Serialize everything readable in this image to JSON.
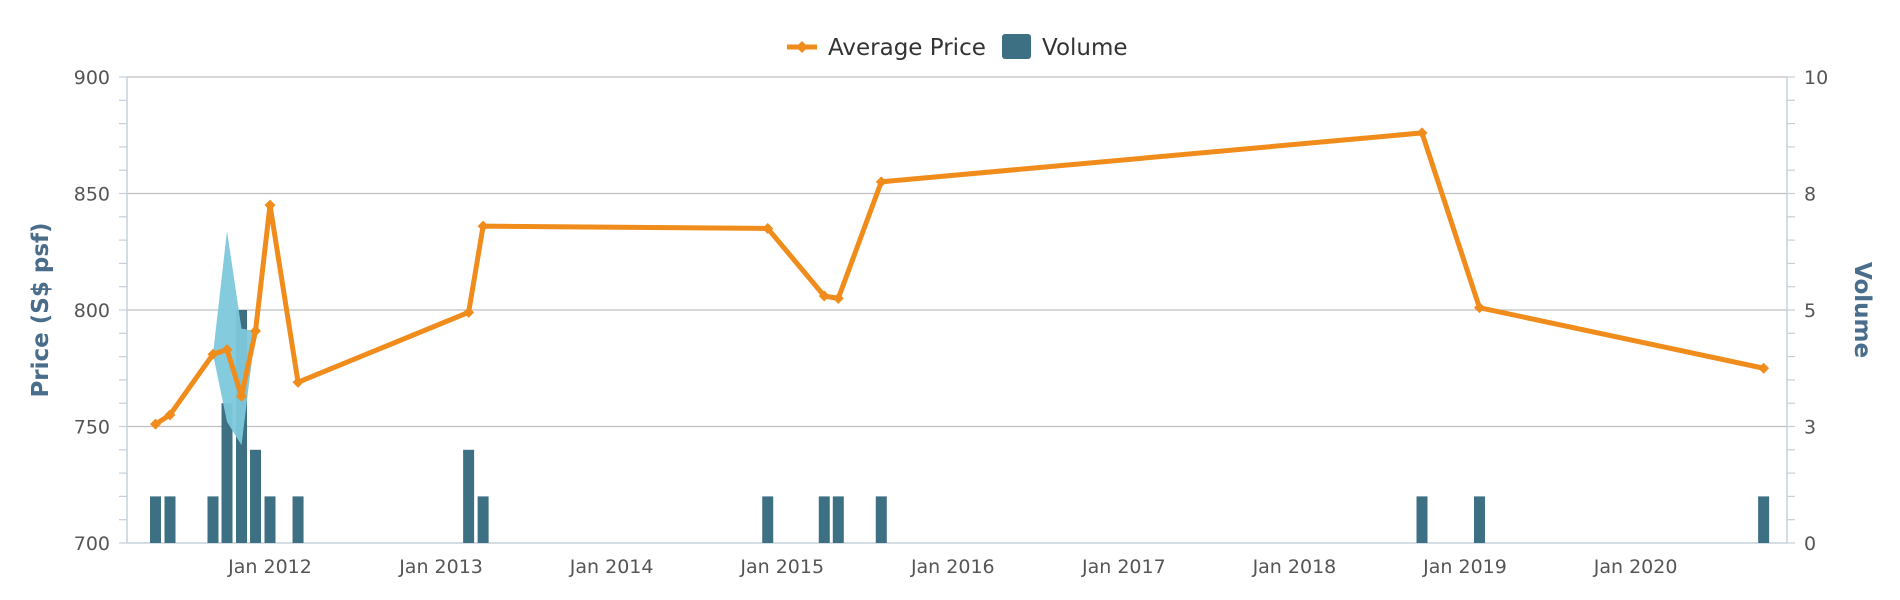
{
  "chart_data": {
    "type": "line+bar",
    "title": "",
    "legend": {
      "placement": "top-center",
      "items": [
        {
          "name": "Average Price",
          "color": "#f08c1b",
          "symbol": "line-diamond"
        },
        {
          "name": "Volume",
          "color": "#3e7083",
          "symbol": "square"
        }
      ]
    },
    "x_axis": {
      "range": [
        "2011-03-01",
        "2020-11-20"
      ],
      "ticks": [
        {
          "date": "2012-01-01",
          "label": "Jan 2012"
        },
        {
          "date": "2013-01-01",
          "label": "Jan 2013"
        },
        {
          "date": "2014-01-01",
          "label": "Jan 2014"
        },
        {
          "date": "2015-01-01",
          "label": "Jan 2015"
        },
        {
          "date": "2016-01-01",
          "label": "Jan 2016"
        },
        {
          "date": "2017-01-01",
          "label": "Jan 2017"
        },
        {
          "date": "2018-01-01",
          "label": "Jan 2018"
        },
        {
          "date": "2019-01-01",
          "label": "Jan 2019"
        },
        {
          "date": "2020-01-01",
          "label": "Jan 2020"
        }
      ]
    },
    "y_left": {
      "label": "Price (S$ psf)",
      "range": [
        700,
        900
      ],
      "ticks": [
        {
          "value": 700,
          "label": "700"
        },
        {
          "value": 750,
          "label": "750"
        },
        {
          "value": 800,
          "label": "800"
        },
        {
          "value": 850,
          "label": "850"
        },
        {
          "value": 900,
          "label": "900"
        }
      ],
      "grid": true
    },
    "y_right": {
      "label": "Volume",
      "range": [
        0,
        10
      ],
      "ticks": [
        {
          "value": 0,
          "label": "0"
        },
        {
          "value": 2.5,
          "label": "3"
        },
        {
          "value": 5,
          "label": "5"
        },
        {
          "value": 7.5,
          "label": "8"
        },
        {
          "value": 10,
          "label": "10"
        }
      ]
    },
    "series": [
      {
        "name": "Average Price",
        "type": "line",
        "color": "#f08c1b",
        "points": [
          {
            "x": "2011-05-01",
            "y": 751
          },
          {
            "x": "2011-06-01",
            "y": 755
          },
          {
            "x": "2011-09-01",
            "y": 781
          },
          {
            "x": "2011-10-01",
            "y": 783
          },
          {
            "x": "2011-11-01",
            "y": 763
          },
          {
            "x": "2011-12-01",
            "y": 791
          },
          {
            "x": "2012-01-01",
            "y": 845
          },
          {
            "x": "2012-03-01",
            "y": 769
          },
          {
            "x": "2013-03-01",
            "y": 799
          },
          {
            "x": "2013-04-01",
            "y": 836
          },
          {
            "x": "2014-12-01",
            "y": 835
          },
          {
            "x": "2015-04-01",
            "y": 806
          },
          {
            "x": "2015-05-01",
            "y": 805
          },
          {
            "x": "2015-08-01",
            "y": 855
          },
          {
            "x": "2018-10-01",
            "y": 876
          },
          {
            "x": "2019-02-01",
            "y": 801
          },
          {
            "x": "2020-10-01",
            "y": 775
          }
        ]
      },
      {
        "name": "Price range",
        "type": "range-band",
        "color": "#7ec8dc",
        "points": [
          {
            "x": "2011-09-01",
            "low": 781,
            "high": 781
          },
          {
            "x": "2011-10-01",
            "low": 752,
            "high": 834
          },
          {
            "x": "2011-11-01",
            "low": 742,
            "high": 792
          },
          {
            "x": "2011-12-01",
            "low": 791,
            "high": 791
          }
        ]
      },
      {
        "name": "Volume",
        "type": "bar",
        "axis": "right",
        "color": "#3e7083",
        "points": [
          {
            "x": "2011-05-01",
            "y": 1
          },
          {
            "x": "2011-06-01",
            "y": 1
          },
          {
            "x": "2011-09-01",
            "y": 1
          },
          {
            "x": "2011-10-01",
            "y": 3
          },
          {
            "x": "2011-11-01",
            "y": 5
          },
          {
            "x": "2011-12-01",
            "y": 2
          },
          {
            "x": "2012-01-01",
            "y": 1
          },
          {
            "x": "2012-03-01",
            "y": 1
          },
          {
            "x": "2013-03-01",
            "y": 2
          },
          {
            "x": "2013-04-01",
            "y": 1
          },
          {
            "x": "2014-12-01",
            "y": 1
          },
          {
            "x": "2015-04-01",
            "y": 1
          },
          {
            "x": "2015-05-01",
            "y": 1
          },
          {
            "x": "2015-08-01",
            "y": 1
          },
          {
            "x": "2018-10-01",
            "y": 1
          },
          {
            "x": "2019-02-01",
            "y": 1
          },
          {
            "x": "2020-10-01",
            "y": 1
          }
        ]
      }
    ]
  }
}
